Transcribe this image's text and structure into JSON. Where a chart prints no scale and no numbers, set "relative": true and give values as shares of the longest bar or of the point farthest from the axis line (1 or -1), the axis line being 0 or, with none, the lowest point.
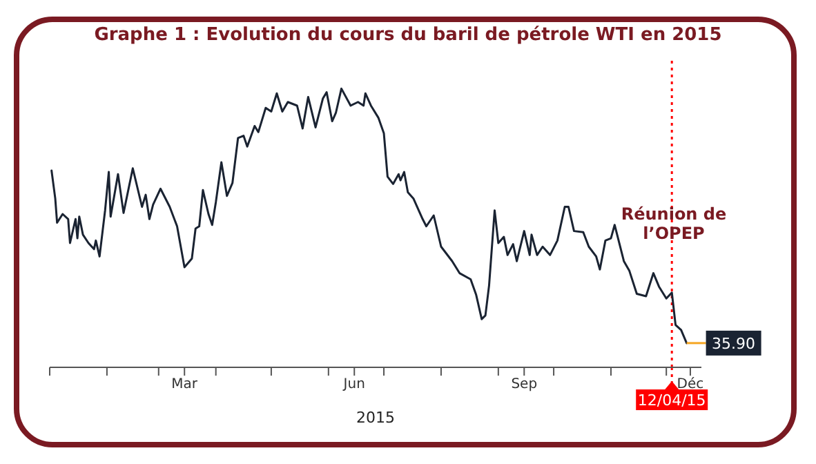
{
  "chart_data": {
    "type": "line",
    "title": "Graphe 1 : Evolution du cours du baril de pétrole WTI en 2015",
    "xlabel": "2015",
    "x": [
      "2015-01-02",
      "2015-01-04",
      "2015-01-05",
      "2015-01-08",
      "2015-01-11",
      "2015-01-12",
      "2015-01-15",
      "2015-01-16",
      "2015-01-17",
      "2015-01-19",
      "2015-01-22",
      "2015-01-25",
      "2015-01-26",
      "2015-01-28",
      "2015-01-31",
      "2015-02-02",
      "2015-02-03",
      "2015-02-07",
      "2015-02-10",
      "2015-02-15",
      "2015-02-20",
      "2015-02-22",
      "2015-02-24",
      "2015-02-26",
      "2015-03-02",
      "2015-03-07",
      "2015-03-11",
      "2015-03-15",
      "2015-03-19",
      "2015-03-21",
      "2015-03-23",
      "2015-03-25",
      "2015-03-28",
      "2015-03-30",
      "2015-04-01",
      "2015-04-04",
      "2015-04-07",
      "2015-04-10",
      "2015-04-13",
      "2015-04-16",
      "2015-04-18",
      "2015-04-22",
      "2015-04-24",
      "2015-04-28",
      "2015-05-01",
      "2015-05-04",
      "2015-05-07",
      "2015-05-10",
      "2015-05-15",
      "2015-05-18",
      "2015-05-21",
      "2015-05-25",
      "2015-05-29",
      "2015-05-31",
      "2015-06-03",
      "2015-06-05",
      "2015-06-08",
      "2015-06-13",
      "2015-06-17",
      "2015-06-20",
      "2015-06-21",
      "2015-06-24",
      "2015-06-28",
      "2015-07-01",
      "2015-07-03",
      "2015-07-06",
      "2015-07-09",
      "2015-07-10",
      "2015-07-12",
      "2015-07-14",
      "2015-07-17",
      "2015-07-22",
      "2015-07-24",
      "2015-07-28",
      "2015-08-01",
      "2015-08-07",
      "2015-08-11",
      "2015-08-17",
      "2015-08-20",
      "2015-08-23",
      "2015-08-25",
      "2015-08-27",
      "2015-08-30",
      "2015-09-01",
      "2015-09-04",
      "2015-09-06",
      "2015-09-09",
      "2015-09-11",
      "2015-09-15",
      "2015-09-18",
      "2015-09-19",
      "2015-09-22",
      "2015-09-25",
      "2015-09-29",
      "2015-10-03",
      "2015-10-07",
      "2015-10-09",
      "2015-10-12",
      "2015-10-17",
      "2015-10-20",
      "2015-10-24",
      "2015-10-26",
      "2015-10-29",
      "2015-11-01",
      "2015-11-03",
      "2015-11-08",
      "2015-11-11",
      "2015-11-15",
      "2015-11-20",
      "2015-11-24",
      "2015-11-27",
      "2015-12-01",
      "2015-12-04",
      "2015-12-06",
      "2015-12-09",
      "2015-12-12"
    ],
    "series": [
      {
        "color": "#1a2332",
        "values": [
          0.706,
          0.606,
          0.519,
          0.55,
          0.532,
          0.446,
          0.532,
          0.463,
          0.541,
          0.476,
          0.446,
          0.424,
          0.455,
          0.398,
          0.563,
          0.701,
          0.541,
          0.693,
          0.554,
          0.714,
          0.576,
          0.619,
          0.532,
          0.584,
          0.641,
          0.576,
          0.506,
          0.359,
          0.39,
          0.498,
          0.506,
          0.636,
          0.55,
          0.511,
          0.593,
          0.736,
          0.615,
          0.662,
          0.823,
          0.831,
          0.792,
          0.866,
          0.844,
          0.931,
          0.918,
          0.983,
          0.918,
          0.952,
          0.939,
          0.857,
          0.97,
          0.861,
          0.965,
          0.987,
          0.883,
          0.913,
          1.0,
          0.939,
          0.952,
          0.939,
          0.983,
          0.939,
          0.896,
          0.84,
          0.684,
          0.658,
          0.693,
          0.671,
          0.701,
          0.628,
          0.606,
          0.532,
          0.506,
          0.545,
          0.433,
          0.381,
          0.338,
          0.316,
          0.26,
          0.173,
          0.186,
          0.294,
          0.563,
          0.446,
          0.468,
          0.403,
          0.442,
          0.381,
          0.489,
          0.403,
          0.476,
          0.403,
          0.433,
          0.403,
          0.455,
          0.576,
          0.576,
          0.489,
          0.485,
          0.433,
          0.398,
          0.351,
          0.455,
          0.463,
          0.511,
          0.381,
          0.346,
          0.264,
          0.255,
          0.338,
          0.29,
          0.247,
          0.268,
          0.152,
          0.134,
          0.087
        ]
      }
    ],
    "relative": true,
    "xlim": [
      "2015-01-01",
      "2015-12-20"
    ],
    "xticks": [
      {
        "value": "2015-01-01",
        "label": null
      },
      {
        "value": "2015-02-01",
        "label": null
      },
      {
        "value": "2015-03-01",
        "label": null
      },
      {
        "value": "2015-03-15",
        "label": "Mar"
      },
      {
        "value": "2015-04-01",
        "label": null
      },
      {
        "value": "2015-05-01",
        "label": null
      },
      {
        "value": "2015-06-01",
        "label": null
      },
      {
        "value": "2015-06-15",
        "label": "Jun"
      },
      {
        "value": "2015-07-01",
        "label": null
      },
      {
        "value": "2015-08-01",
        "label": null
      },
      {
        "value": "2015-09-01",
        "label": null
      },
      {
        "value": "2015-09-15",
        "label": "Sep"
      },
      {
        "value": "2015-10-01",
        "label": null
      },
      {
        "value": "2015-11-01",
        "label": null
      },
      {
        "value": "2015-12-01",
        "label": null
      },
      {
        "value": "2015-12-14",
        "label": "Déc"
      }
    ],
    "ref_lines": [
      {
        "axis": "x",
        "value": "2015-12-04",
        "label": "12/04/15",
        "color": "#ff0000",
        "line_style": "dotted"
      }
    ],
    "annotations": [
      "Réunion de l’OPEP",
      "35.90"
    ],
    "marker": "none",
    "line_style": "solid"
  }
}
